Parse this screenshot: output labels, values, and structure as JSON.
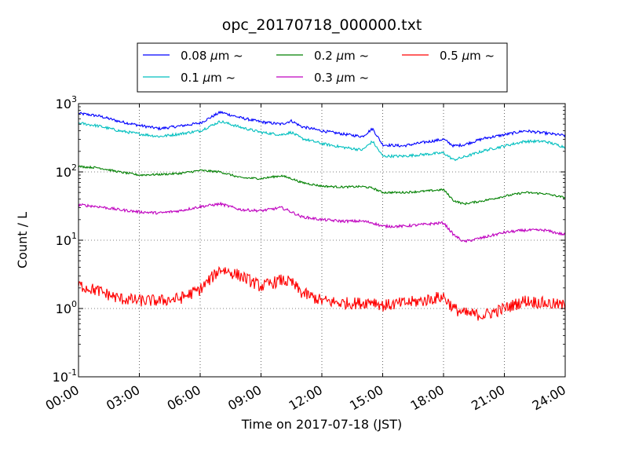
{
  "chart_data": {
    "type": "line",
    "title": "opc_20170718_000000.txt",
    "xlabel": "Time on 2017-07-18 (JST)",
    "ylabel": "Count / L",
    "yscale": "log",
    "ylim": [
      0.1,
      1000
    ],
    "xlim": [
      "00:00",
      "24:00"
    ],
    "grid": true,
    "legend_placement": "top-center",
    "x_ticks": [
      "00:00",
      "03:00",
      "06:00",
      "09:00",
      "12:00",
      "15:00",
      "18:00",
      "21:00",
      "24:00"
    ],
    "y_ticks": [
      {
        "value": 0.1,
        "base": "10",
        "exp": "-1"
      },
      {
        "value": 1,
        "base": "10",
        "exp": "0"
      },
      {
        "value": 10,
        "base": "10",
        "exp": "1"
      },
      {
        "value": 100,
        "base": "10",
        "exp": "2"
      },
      {
        "value": 1000,
        "base": "10",
        "exp": "3"
      }
    ],
    "x": [
      "00:00",
      "01:00",
      "02:00",
      "03:00",
      "04:00",
      "05:00",
      "06:00",
      "07:00",
      "08:00",
      "09:00",
      "10:00",
      "10:30",
      "11:00",
      "12:00",
      "13:00",
      "14:00",
      "14:30",
      "15:00",
      "16:00",
      "17:00",
      "18:00",
      "18:30",
      "19:00",
      "20:00",
      "21:00",
      "22:00",
      "23:00",
      "24:00"
    ],
    "series": [
      {
        "name": "0.08 μm ~",
        "label_main": "0.08 ",
        "label_mu": "μ",
        "label_rest": "m ~",
        "color": "#0000ff",
        "values": [
          720,
          660,
          550,
          480,
          430,
          470,
          520,
          750,
          620,
          540,
          500,
          560,
          460,
          400,
          360,
          330,
          430,
          250,
          240,
          270,
          300,
          240,
          250,
          310,
          350,
          400,
          370,
          340
        ]
      },
      {
        "name": "0.1 μm ~",
        "label_main": "0.1 ",
        "label_mu": "μ",
        "label_rest": "m ~",
        "color": "#00bfbf",
        "values": [
          520,
          470,
          400,
          360,
          330,
          360,
          400,
          550,
          450,
          380,
          350,
          380,
          310,
          260,
          230,
          210,
          280,
          170,
          170,
          180,
          190,
          150,
          165,
          205,
          240,
          280,
          280,
          230
        ]
      },
      {
        "name": "0.2 μm ~",
        "label_main": "0.2 ",
        "label_mu": "μ",
        "label_rest": "m ~",
        "color": "#008000",
        "values": [
          120,
          115,
          100,
          90,
          92,
          95,
          105,
          100,
          82,
          80,
          88,
          80,
          70,
          62,
          60,
          61,
          58,
          50,
          50,
          52,
          55,
          38,
          34,
          38,
          44,
          50,
          48,
          42
        ]
      },
      {
        "name": "0.3 μm ~",
        "label_main": "0.3 ",
        "label_mu": "μ",
        "label_rest": "m ~",
        "color": "#bf00bf",
        "values": [
          33,
          31,
          28,
          26,
          25,
          27,
          31,
          34,
          28,
          27,
          30,
          26,
          22,
          20,
          19,
          19,
          18,
          16,
          16,
          17,
          18,
          12,
          9.5,
          11,
          13,
          14,
          14,
          12
        ]
      },
      {
        "name": "0.5 μm ~",
        "label_main": "0.5 ",
        "label_mu": "μ",
        "label_rest": "m ~",
        "color": "#ff0000",
        "values": [
          2.2,
          1.8,
          1.4,
          1.3,
          1.3,
          1.4,
          1.9,
          3.8,
          3.0,
          2.1,
          2.6,
          2.4,
          1.7,
          1.3,
          1.2,
          1.2,
          1.3,
          1.1,
          1.2,
          1.3,
          1.5,
          1.0,
          0.85,
          0.8,
          1.0,
          1.3,
          1.2,
          1.1
        ]
      }
    ]
  }
}
